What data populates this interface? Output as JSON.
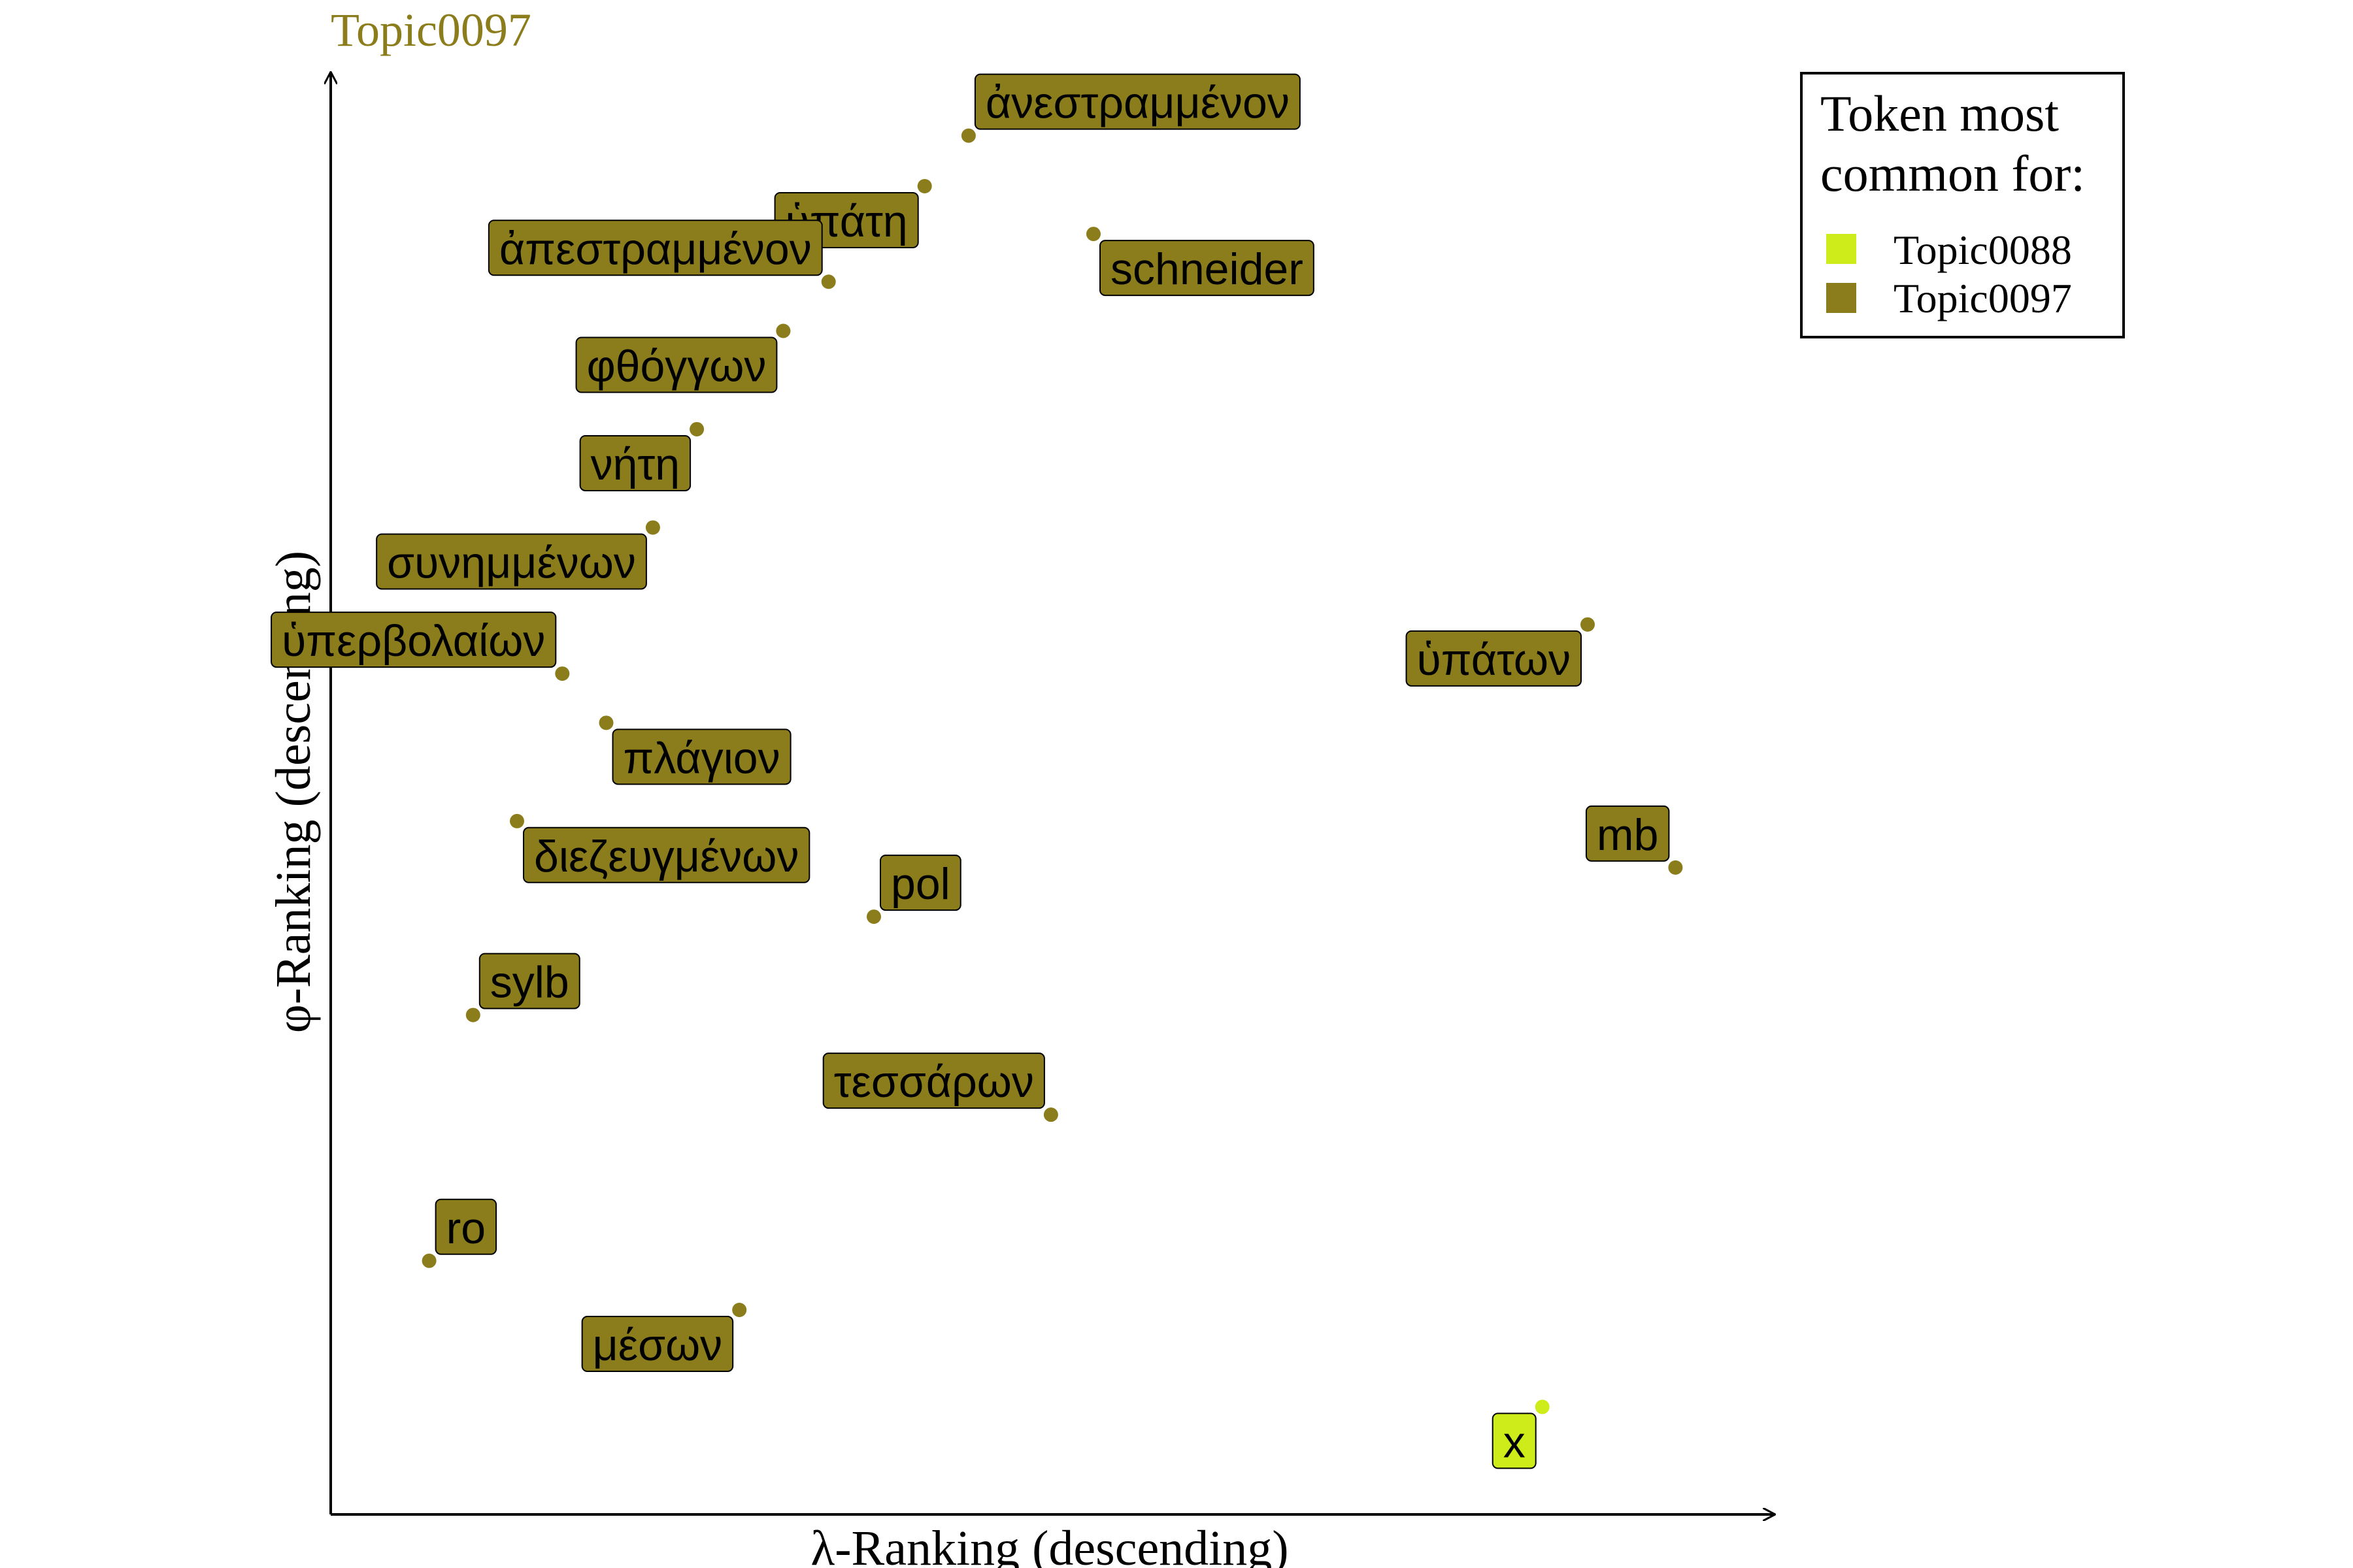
{
  "chart_data": {
    "type": "scatter",
    "title": "Topic0097",
    "xlabel": "λ-Ranking (descending)",
    "ylabel": "φ-Ranking (descending)",
    "xlim": [
      0,
      100
    ],
    "ylim": [
      0,
      100
    ],
    "grid": false,
    "legend": {
      "title_lines": [
        "Token most",
        "common for:"
      ],
      "placement": "top-right",
      "entries": [
        {
          "name": "Topic0088",
          "color": "#cdec1a"
        },
        {
          "name": "Topic0097",
          "color": "#8b7d1c"
        }
      ]
    },
    "points": [
      {
        "label": "ἀνεστραμμένον",
        "x": 43.9,
        "y": 98.2,
        "series": "Topic0097",
        "label_pos": "upper-right"
      },
      {
        "label": "ὑπάτη",
        "x": 40.7,
        "y": 94.5,
        "series": "Topic0097",
        "label_pos": "lower-left"
      },
      {
        "label": "schneider",
        "x": 53.0,
        "y": 91.0,
        "series": "Topic0097",
        "label_pos": "lower-right"
      },
      {
        "label": "ἀπεστραμμένον",
        "x": 33.7,
        "y": 87.5,
        "series": "Topic0097",
        "label_pos": "upper-left"
      },
      {
        "label": "φθόγγων",
        "x": 30.4,
        "y": 83.9,
        "series": "Topic0097",
        "label_pos": "lower-left"
      },
      {
        "label": "νήτη",
        "x": 24.1,
        "y": 76.7,
        "series": "Topic0097",
        "label_pos": "lower-left"
      },
      {
        "label": "συνημμένων",
        "x": 20.9,
        "y": 69.5,
        "series": "Topic0097",
        "label_pos": "lower-left"
      },
      {
        "label": "ὑπερβολαίων",
        "x": 14.3,
        "y": 58.8,
        "series": "Topic0097",
        "label_pos": "upper-left"
      },
      {
        "label": "πλάγιον",
        "x": 17.5,
        "y": 55.2,
        "series": "Topic0097",
        "label_pos": "lower-right"
      },
      {
        "label": "διεζευγμένων",
        "x": 11.0,
        "y": 48.0,
        "series": "Topic0097",
        "label_pos": "lower-right"
      },
      {
        "label": "pol",
        "x": 37.0,
        "y": 41.0,
        "series": "Topic0097",
        "label_pos": "upper-right"
      },
      {
        "label": "sylb",
        "x": 7.8,
        "y": 33.8,
        "series": "Topic0097",
        "label_pos": "upper-right"
      },
      {
        "label": "τεσσάρων",
        "x": 49.9,
        "y": 26.5,
        "series": "Topic0097",
        "label_pos": "upper-left"
      },
      {
        "label": "ro",
        "x": 4.6,
        "y": 15.8,
        "series": "Topic0097",
        "label_pos": "upper-right"
      },
      {
        "label": "μέσων",
        "x": 27.2,
        "y": 12.2,
        "series": "Topic0097",
        "label_pos": "lower-left"
      },
      {
        "label": "ὑπάτων",
        "x": 89.0,
        "y": 62.4,
        "series": "Topic0097",
        "label_pos": "lower-left"
      },
      {
        "label": "mb",
        "x": 95.4,
        "y": 44.6,
        "series": "Topic0097",
        "label_pos": "upper-left"
      },
      {
        "label": "x",
        "x": 85.7,
        "y": 5.1,
        "series": "Topic0088",
        "label_pos": "lower-left"
      }
    ]
  }
}
